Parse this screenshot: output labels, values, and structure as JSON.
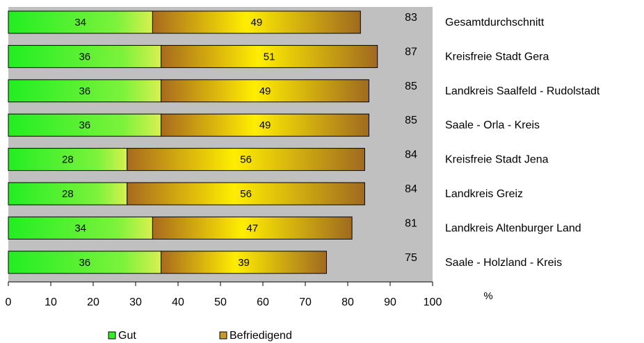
{
  "chart_data": {
    "type": "bar",
    "orientation": "horizontal",
    "stacked": true,
    "categories": [
      "Gesamtdurchschnitt",
      "Kreisfreie Stadt Gera",
      "Landkreis Saalfeld - Rudolstadt",
      "Saale - Orla - Kreis",
      "Kreisfreie Stadt Jena",
      "Landkreis Greiz",
      "Landkreis Altenburger Land",
      "Saale - Holzland - Kreis"
    ],
    "series": [
      {
        "name": "Gut",
        "values": [
          34,
          36,
          36,
          36,
          28,
          28,
          34,
          36
        ],
        "color": "#33ee22"
      },
      {
        "name": "Befriedigend",
        "values": [
          49,
          51,
          49,
          49,
          56,
          56,
          47,
          39
        ],
        "color": "#c89a2a"
      }
    ],
    "totals": [
      83,
      87,
      85,
      85,
      84,
      84,
      81,
      75
    ],
    "xlim": [
      0,
      100
    ],
    "xticks": [
      0,
      10,
      20,
      30,
      40,
      50,
      60,
      70,
      80,
      90,
      100
    ],
    "xunit": "%",
    "plot_background": "#c0c0c0",
    "grid": false,
    "legend_position": "bottom"
  }
}
